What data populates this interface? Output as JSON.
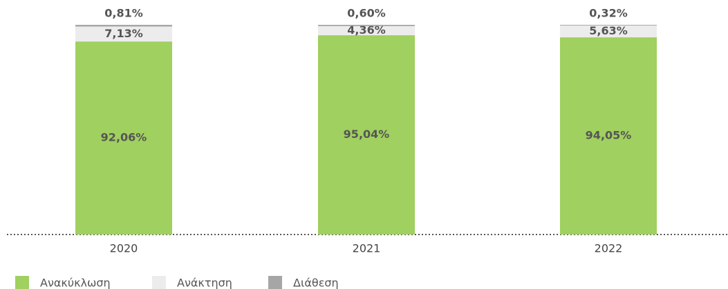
{
  "chart_data": {
    "type": "stacked_bar",
    "categories": [
      "2020",
      "2021",
      "2022"
    ],
    "series": [
      {
        "name": "Ανακύκλωση",
        "color": "#a0d05f",
        "values": [
          92.06,
          95.04,
          94.05
        ],
        "value_labels": [
          "92,06%",
          "95,04%",
          "94,05%"
        ]
      },
      {
        "name": "Ανάκτηση",
        "color": "#ececec",
        "values": [
          7.13,
          4.36,
          5.63
        ],
        "value_labels": [
          "7,13%",
          "4,36%",
          "5,63%"
        ]
      },
      {
        "name": "Διάθεση",
        "color": "#a6a6a6",
        "values": [
          0.81,
          0.6,
          0.32
        ],
        "value_labels": [
          "0,81%",
          "0,60%",
          "0,32%"
        ]
      }
    ],
    "legend": "bottom-left"
  }
}
